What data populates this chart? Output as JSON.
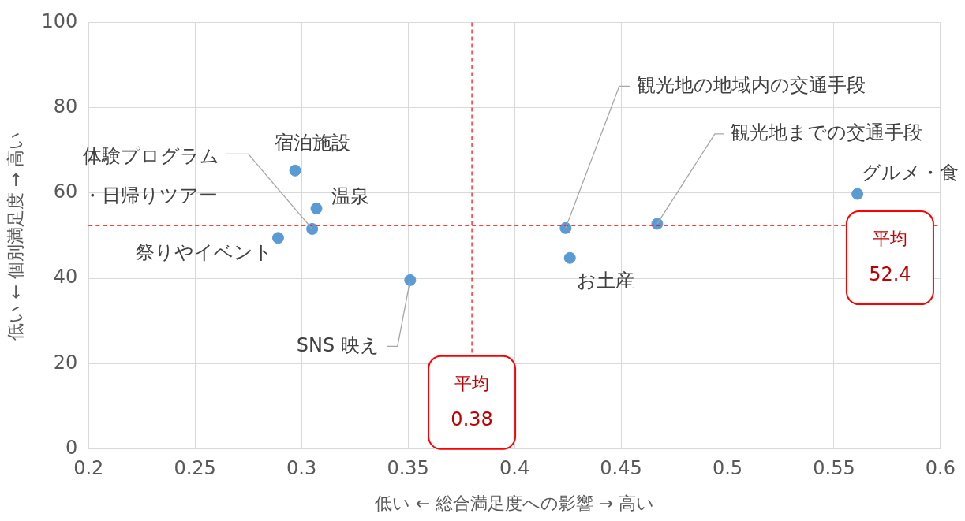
{
  "chart_data": {
    "type": "scatter",
    "xlabel": "低い ← 総合満足度への影響 → 高い",
    "ylabel": "低い ← 個別満足度 → 高い",
    "x": [
      0.297,
      0.307,
      0.305,
      0.289,
      0.351,
      0.424,
      0.467,
      0.561,
      0.426
    ],
    "values": [
      65.3,
      56.4,
      51.6,
      49.5,
      39.6,
      51.8,
      52.8,
      59.8,
      44.8
    ],
    "color": "#5b9bd5",
    "marker": "circle",
    "grid": true,
    "xlim": [
      0.2,
      0.6
    ],
    "xticks": [
      0.2,
      0.25,
      0.3,
      0.35,
      0.4,
      0.45,
      0.5,
      0.55,
      0.6
    ],
    "ylim": [
      0,
      100
    ],
    "yticks": [
      0,
      20,
      40,
      60,
      80,
      100
    ],
    "ref_lines": [
      {
        "axis": "x",
        "value": 0.38,
        "label": "平均 0.38",
        "color": "#ff0000",
        "line_style": "dashed"
      },
      {
        "axis": "y",
        "value": 52.4,
        "label": "平均 52.4",
        "color": "#ff0000",
        "line_style": "dashed"
      }
    ],
    "annotations": [
      {
        "text": "宿泊施設",
        "x": 0.297,
        "y": 65.3
      },
      {
        "text": "温泉",
        "x": 0.307,
        "y": 56.4
      },
      {
        "text": "体験プログラム・日帰りツアー",
        "x": 0.305,
        "y": 51.6
      },
      {
        "text": "祭りやイベント",
        "x": 0.289,
        "y": 49.5
      },
      {
        "text": "SNS 映え",
        "x": 0.351,
        "y": 39.6
      },
      {
        "text": "観光地の地域内の交通手段",
        "x": 0.424,
        "y": 51.8
      },
      {
        "text": "観光地までの交通手段",
        "x": 0.467,
        "y": 52.8
      },
      {
        "text": "グルメ・食",
        "x": 0.561,
        "y": 59.8
      },
      {
        "text": "お土産",
        "x": 0.426,
        "y": 44.8
      }
    ]
  }
}
